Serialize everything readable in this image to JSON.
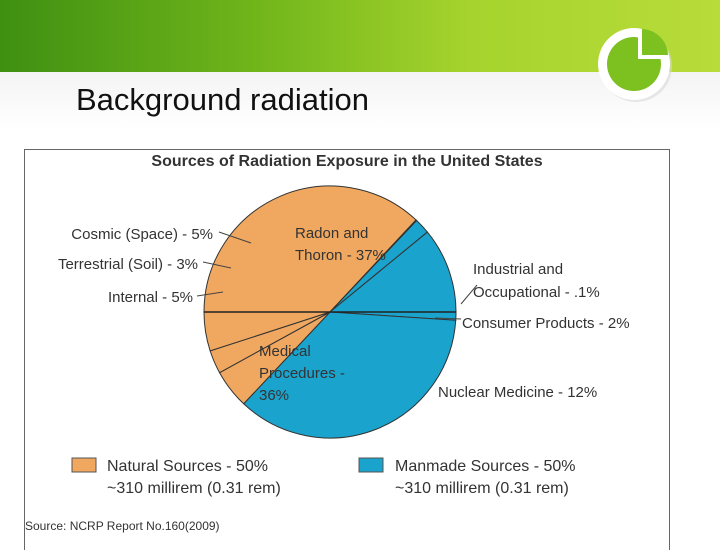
{
  "slide": {
    "title": "Background radiation"
  },
  "colors": {
    "banner": "#6fb51a",
    "natural": "#f0a860",
    "manmade": "#1aa3cc"
  },
  "chart_data": {
    "type": "pie",
    "title": "Sources of Radiation Exposure in the United States",
    "slices": [
      {
        "label": "Radon and Thoron - 37%",
        "value": 37,
        "group": "natural"
      },
      {
        "label": "Industrial and Occupational - .1%",
        "value": 0.1,
        "group": "manmade"
      },
      {
        "label": "Consumer Products - 2%",
        "value": 2,
        "group": "manmade"
      },
      {
        "label": "Nuclear Medicine - 12%",
        "value": 12,
        "group": "manmade"
      },
      {
        "label": "Medical Procedures - 36%",
        "value": 36,
        "group": "manmade"
      },
      {
        "label": "Internal - 5%",
        "value": 5,
        "group": "natural"
      },
      {
        "label": "Terrestrial (Soil) - 3%",
        "value": 3,
        "group": "natural"
      },
      {
        "label": "Cosmic (Space) - 5%",
        "value": 5,
        "group": "natural"
      }
    ],
    "legend": [
      {
        "line1": "Natural Sources - 50%",
        "line2": "~310 millirem (0.31 rem)",
        "group": "natural"
      },
      {
        "line1": "Manmade Sources - 50%",
        "line2": "~310 millirem (0.31 rem)",
        "group": "manmade"
      }
    ],
    "source": "Source: NCRP Report No.160(2009)"
  }
}
